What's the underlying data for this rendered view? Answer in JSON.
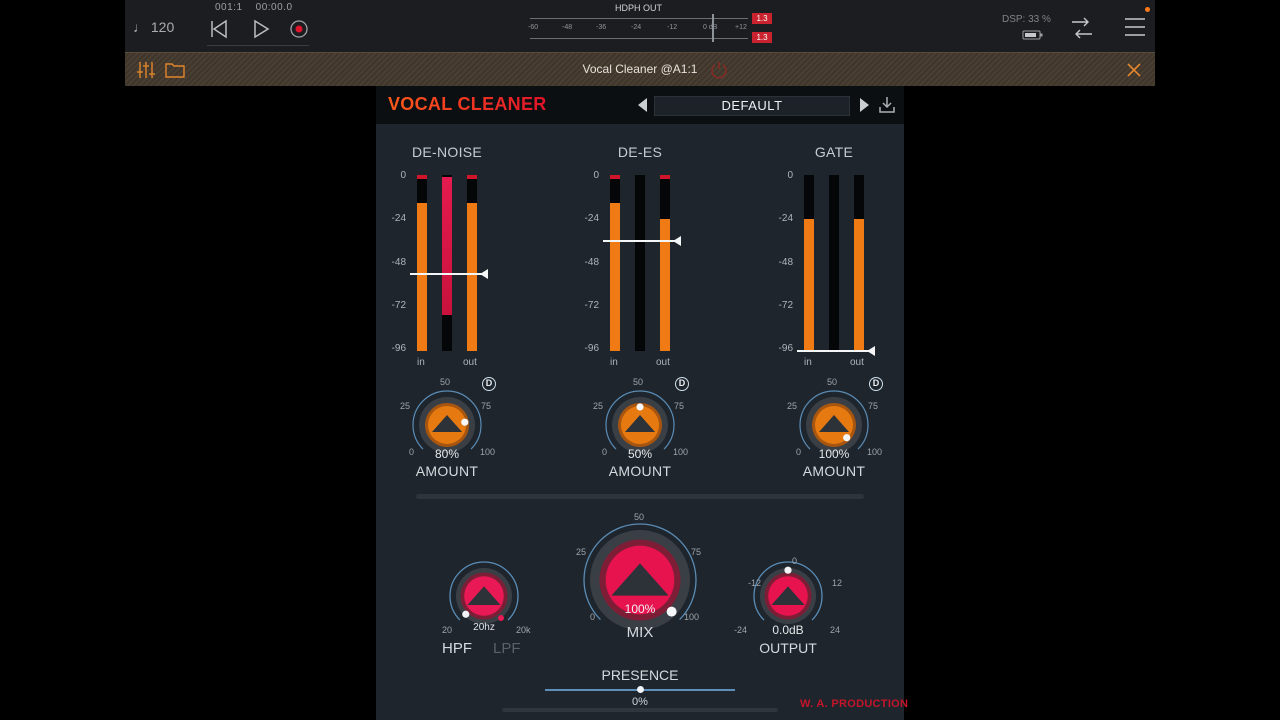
{
  "host": {
    "tempo": "120",
    "position_bar": "001:1",
    "position_time": "00:00.0",
    "meter_title": "HDPH OUT",
    "meter_scale": [
      "-60",
      "-48",
      "-36",
      "-24",
      "-12",
      "0 dB",
      "+12"
    ],
    "clip_left": "1.3",
    "clip_right": "1.3",
    "dsp": "DSP: 33 %",
    "colors": {
      "accent": "#e0132a",
      "background": "#1b1d20"
    }
  },
  "plugin_bar": {
    "title": "Vocal Cleaner @A1:1"
  },
  "plugin": {
    "brand": "VOCAL CLEANER",
    "preset": "DEFAULT",
    "scale": [
      "0",
      "-24",
      "-48",
      "-72",
      "-96"
    ],
    "sections": [
      {
        "title": "DE-NOISE",
        "in_label": "in",
        "out_label": "out",
        "knob": {
          "label": "AMOUNT",
          "value": "80%",
          "level": 0.8,
          "min": "0",
          "q1": "25",
          "mid": "50",
          "q3": "75",
          "max": "100",
          "badge": "D"
        }
      },
      {
        "title": "DE-ES",
        "in_label": "in",
        "out_label": "out",
        "knob": {
          "label": "AMOUNT",
          "value": "50%",
          "level": 0.5,
          "min": "0",
          "q1": "25",
          "mid": "50",
          "q3": "75",
          "max": "100",
          "badge": "D"
        }
      },
      {
        "title": "GATE",
        "in_label": "in",
        "out_label": "out",
        "knob": {
          "label": "AMOUNT",
          "value": "100%",
          "level": 1.0,
          "min": "0",
          "q1": "25",
          "mid": "50",
          "q3": "75",
          "max": "100",
          "badge": "D"
        }
      }
    ],
    "filter": {
      "value": "20hz",
      "min": "20",
      "max": "20k",
      "hpf_label": "HPF",
      "lpf_label": "LPF"
    },
    "mix": {
      "label": "MIX",
      "value": "100%",
      "level": 1.0,
      "min": "0",
      "q1": "25",
      "mid": "50",
      "q3": "75",
      "max": "100"
    },
    "output": {
      "label": "OUTPUT",
      "value": "0.0dB",
      "min": "-24",
      "lo": "-12",
      "mid": "0",
      "hi": "12",
      "max": "24"
    },
    "presence": {
      "label": "PRESENCE",
      "value": "0%",
      "level": 0.5
    },
    "footer": "W. A. PRODUCTION"
  }
}
